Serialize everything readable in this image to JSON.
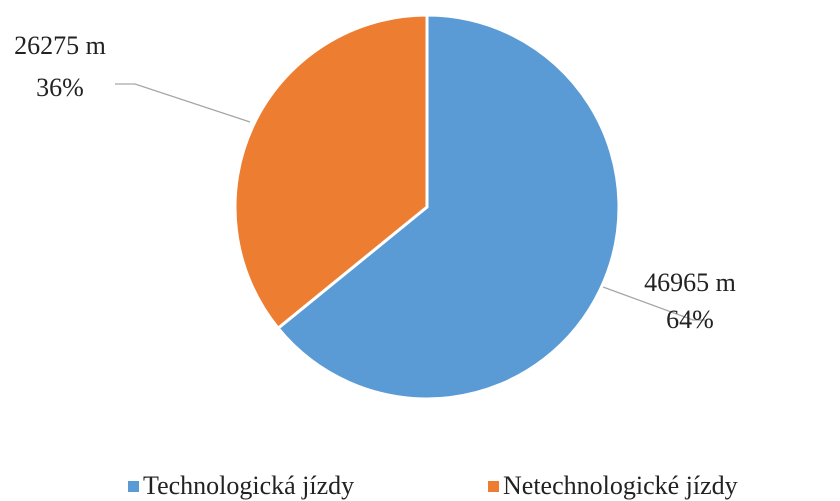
{
  "chart_data": {
    "type": "pie",
    "categories": [
      "Technologická jízdy",
      "Netechnologické jízdy"
    ],
    "values": [
      46965,
      26275
    ],
    "value_labels": [
      "46965 m",
      "26275 m"
    ],
    "percent_labels": [
      "64%",
      "36%"
    ],
    "colors": [
      "#5b9bd5",
      "#ed7d31"
    ],
    "legend": "bottom"
  }
}
